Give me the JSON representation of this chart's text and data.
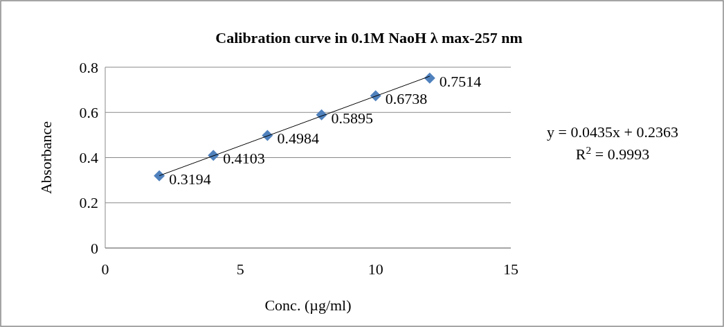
{
  "chart_data": {
    "type": "scatter",
    "title": "Calibration  curve in 0.1M NaoH   λ max-257 nm",
    "xlabel": "Conc. (µg/ml)",
    "ylabel": "Absorbance",
    "xlim": [
      0,
      15
    ],
    "xticks": [
      0,
      5,
      10,
      15
    ],
    "ylim": [
      0,
      0.8
    ],
    "yticks": [
      0,
      0.2,
      0.4,
      0.6,
      0.8
    ],
    "grid": "y",
    "series": [
      {
        "marker": "diamond",
        "color": "#4f81bd",
        "x": [
          2,
          4,
          6,
          8,
          10,
          12
        ],
        "values": [
          0.3194,
          0.4103,
          0.4984,
          0.5895,
          0.6738,
          0.7514
        ],
        "value_labels": [
          "0.3194",
          "0.4103",
          "0.4984",
          "0.5895",
          "0.6738",
          "0.7514"
        ]
      },
      {
        "type": "line",
        "marker": "none",
        "color": "#000000",
        "x": [
          2,
          12
        ],
        "values": [
          0.32,
          0.76
        ]
      }
    ],
    "annotations": [
      "y = 0.0435x + 0.2363",
      "R$^{2}$ = 0.9993"
    ]
  }
}
